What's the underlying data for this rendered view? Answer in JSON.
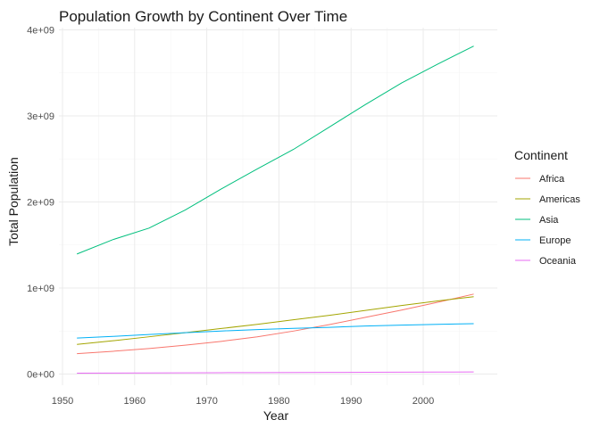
{
  "chart_data": {
    "type": "line",
    "title": "Population Growth by Continent Over Time",
    "xlabel": "Year",
    "ylabel": "Total Population",
    "xlim": [
      1950,
      2010
    ],
    "ylim": [
      0,
      4000000000
    ],
    "x_ticks": [
      1950,
      1960,
      1970,
      1980,
      1990,
      2000
    ],
    "y_ticks": [
      0,
      1000000000,
      2000000000,
      3000000000,
      4000000000
    ],
    "y_tick_labels": [
      "0e+00",
      "1e+09",
      "2e+09",
      "3e+09",
      "4e+09"
    ],
    "grid": true,
    "legend_title": "Continent",
    "legend_position": "right",
    "x": [
      1952,
      1957,
      1962,
      1967,
      1972,
      1977,
      1982,
      1987,
      1992,
      1997,
      2002,
      2007
    ],
    "series": [
      {
        "name": "Africa",
        "color": "#F8766D",
        "values": [
          237640501,
          264837738,
          296516865,
          335289489,
          379879541,
          433061021,
          499348587,
          574834110,
          659081517,
          743832984,
          833723916,
          929539692
        ]
      },
      {
        "name": "Americas",
        "color": "#A3A500",
        "values": [
          345152446,
          386953916,
          433270254,
          480746623,
          529384210,
          578067699,
          630290920,
          682753971,
          739274104,
          796900410,
          849772762,
          898871184
        ]
      },
      {
        "name": "Asia",
        "color": "#00BF7D",
        "values": [
          1395357352,
          1562780599,
          1696357182,
          1905662900,
          2150972248,
          2384513556,
          2610135582,
          2871220762,
          3133292191,
          3383285500,
          3601802203,
          3811953827
        ]
      },
      {
        "name": "Europe",
        "color": "#00B0F6",
        "values": [
          418120846,
          437890351,
          460355155,
          481178958,
          500635059,
          517164531,
          531266901,
          543094160,
          558142797,
          568944148,
          578223869,
          586098529
        ]
      },
      {
        "name": "Oceania",
        "color": "#E76BF3",
        "values": [
          10686006,
          11941976,
          13283518,
          14600414,
          16106279,
          17239000,
          18394850,
          19574415,
          20919651,
          22241430,
          23454829,
          24549947
        ]
      }
    ]
  }
}
